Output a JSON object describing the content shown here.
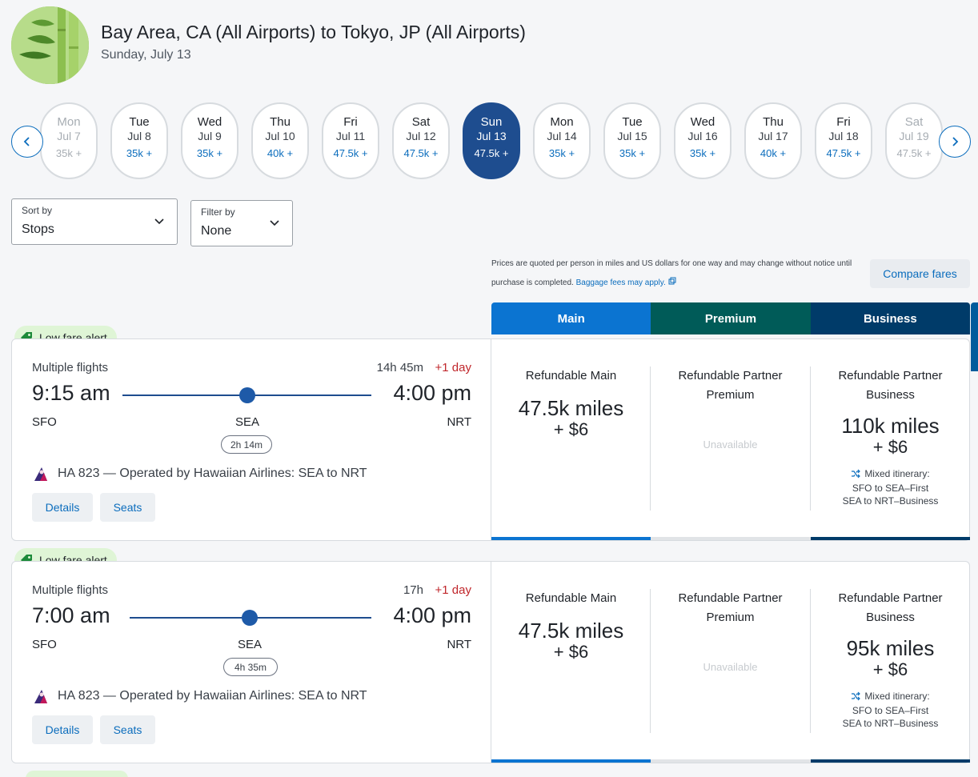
{
  "header": {
    "title": "Bay Area, CA (All Airports) to Tokyo, JP (All Airports)",
    "date": "Sunday, July 13"
  },
  "date_nav": {
    "prev_icon": "chevron-left-icon",
    "next_icon": "chevron-right-icon",
    "days": [
      {
        "weekday": "Mon",
        "date": "Jul 7",
        "price": "35k +",
        "state": "faded"
      },
      {
        "weekday": "Tue",
        "date": "Jul 8",
        "price": "35k +",
        "state": "normal"
      },
      {
        "weekday": "Wed",
        "date": "Jul 9",
        "price": "35k +",
        "state": "normal"
      },
      {
        "weekday": "Thu",
        "date": "Jul 10",
        "price": "40k +",
        "state": "normal"
      },
      {
        "weekday": "Fri",
        "date": "Jul 11",
        "price": "47.5k +",
        "state": "normal"
      },
      {
        "weekday": "Sat",
        "date": "Jul 12",
        "price": "47.5k +",
        "state": "normal"
      },
      {
        "weekday": "Sun",
        "date": "Jul 13",
        "price": "47.5k +",
        "state": "selected"
      },
      {
        "weekday": "Mon",
        "date": "Jul 14",
        "price": "35k +",
        "state": "normal"
      },
      {
        "weekday": "Tue",
        "date": "Jul 15",
        "price": "35k +",
        "state": "normal"
      },
      {
        "weekday": "Wed",
        "date": "Jul 16",
        "price": "35k +",
        "state": "normal"
      },
      {
        "weekday": "Thu",
        "date": "Jul 17",
        "price": "40k +",
        "state": "normal"
      },
      {
        "weekday": "Fri",
        "date": "Jul 18",
        "price": "47.5k +",
        "state": "normal"
      },
      {
        "weekday": "Sat",
        "date": "Jul 19",
        "price": "47.5k +",
        "state": "faded"
      }
    ]
  },
  "sort": {
    "label": "Sort by",
    "value": "Stops"
  },
  "filter": {
    "label": "Filter by",
    "value": "None"
  },
  "disclaimer": {
    "text": "Prices are quoted per person in miles and US dollars for one way and may change without notice until purchase is completed.",
    "link": "Baggage fees may apply."
  },
  "compare_button": "Compare fares",
  "cabins": {
    "main": "Main",
    "premium": "Premium",
    "business": "Business"
  },
  "colors": {
    "main": "#0b74d1",
    "premium": "#005b58",
    "business": "#003b69",
    "selected_day": "#1e4d8f",
    "badge": "#dff5d6",
    "plus_day": "#c0262b"
  },
  "results": [
    {
      "badge": "Low fare alert",
      "type": "Multiple flights",
      "duration": "14h 45m",
      "plus_day": "+1 day",
      "depart_time": "9:15 am",
      "arrive_time": "4:00 pm",
      "from": "SFO",
      "via": "SEA",
      "to": "NRT",
      "layover": "2h 14m",
      "operated": "HA 823 — Operated by Hawaiian Airlines: SEA to NRT",
      "details": "Details",
      "seats": "Seats",
      "fares": {
        "main": {
          "name": "Refundable Main",
          "miles": "47.5k miles",
          "tax": "+ $6"
        },
        "premium": {
          "name": "Refundable Partner Premium",
          "status": "Unavailable"
        },
        "business": {
          "name": "Refundable Partner Business",
          "miles": "110k miles",
          "tax": "+ $6",
          "mixed_title": "Mixed itinerary:",
          "mixed_line1": "SFO to SEA–First",
          "mixed_line2": "SEA to NRT–Business"
        }
      }
    },
    {
      "badge": "Low fare alert",
      "type": "Multiple flights",
      "duration": "17h",
      "plus_day": "+1 day",
      "depart_time": "7:00 am",
      "arrive_time": "4:00 pm",
      "from": "SFO",
      "via": "SEA",
      "to": "NRT",
      "layover": "4h 35m",
      "operated": "HA 823 — Operated by Hawaiian Airlines: SEA to NRT",
      "details": "Details",
      "seats": "Seats",
      "fares": {
        "main": {
          "name": "Refundable Main",
          "miles": "47.5k miles",
          "tax": "+ $6"
        },
        "premium": {
          "name": "Refundable Partner Premium",
          "status": "Unavailable"
        },
        "business": {
          "name": "Refundable Partner Business",
          "miles": "95k miles",
          "tax": "+ $6",
          "mixed_title": "Mixed itinerary:",
          "mixed_line1": "SFO to SEA–First",
          "mixed_line2": "SEA to NRT–Business"
        }
      }
    }
  ]
}
